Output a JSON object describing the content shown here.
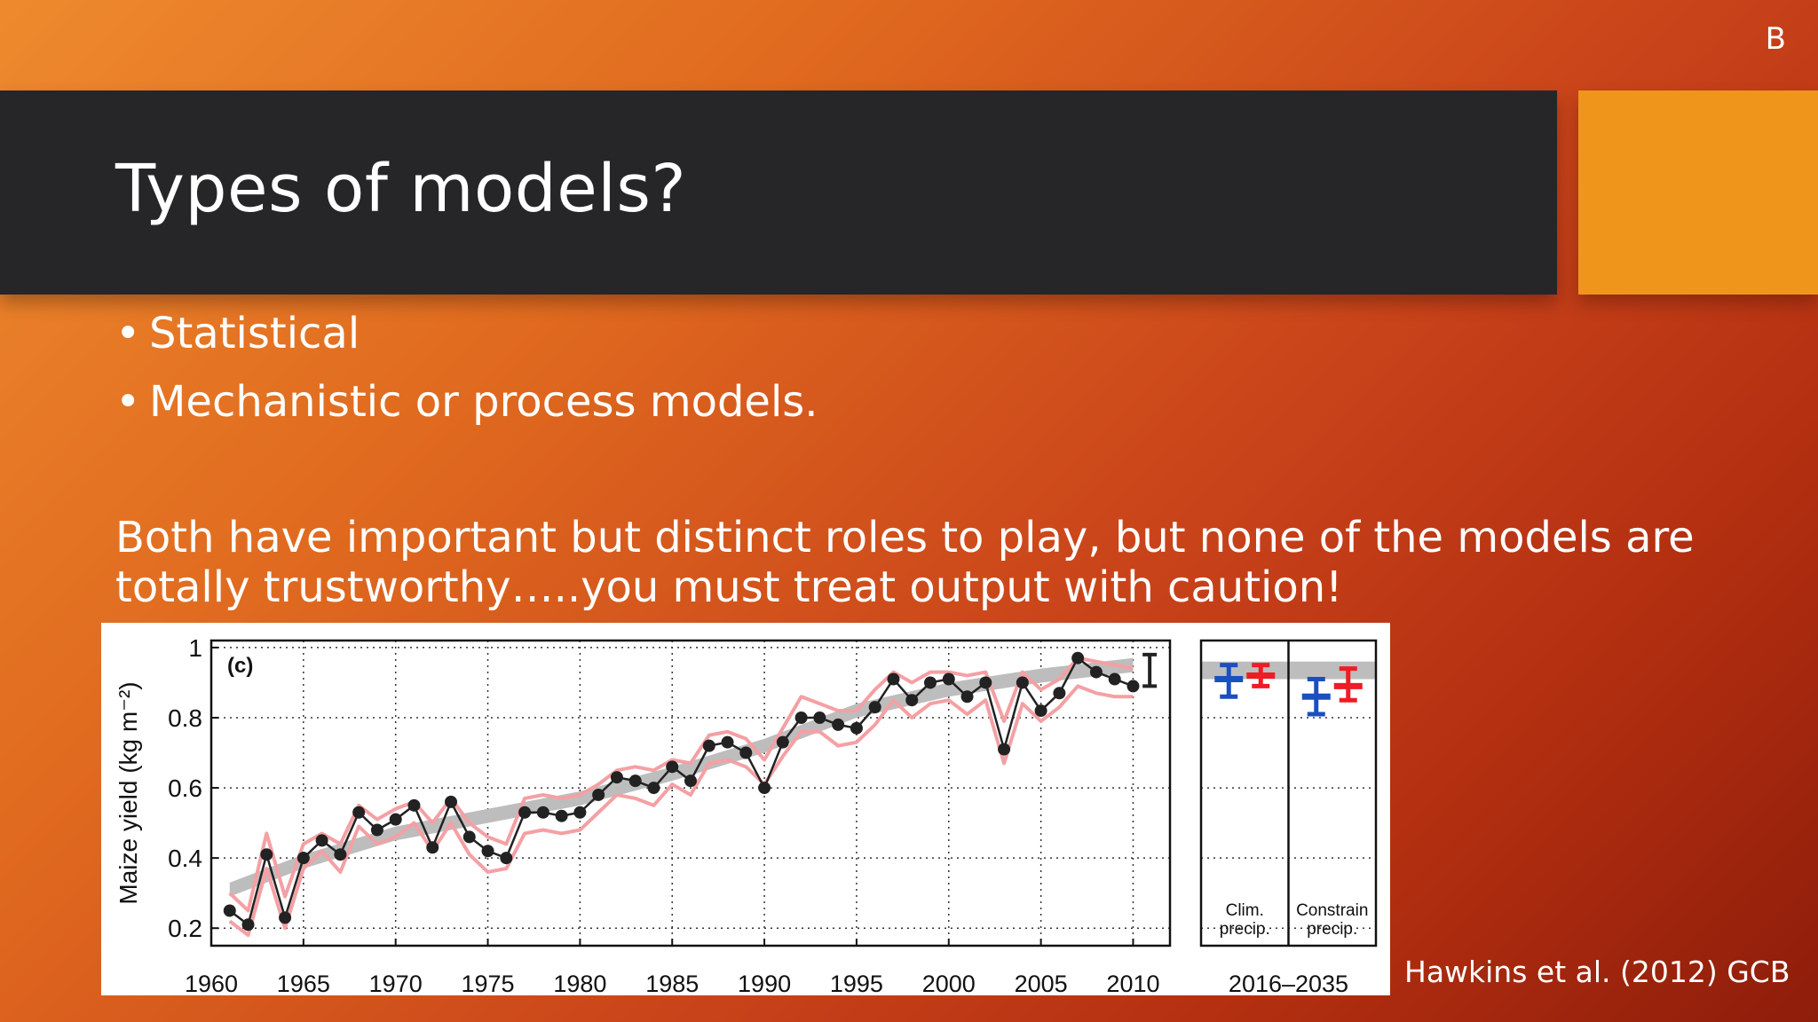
{
  "slide": {
    "corner_letter": "B",
    "title": "Types of models?",
    "bullets": [
      "Statistical",
      "Mechanistic or process models."
    ],
    "bullet_glyph": "•",
    "paragraph_lines": [
      "Both have important but distinct roles to play, but none of the models are",
      "totally trustworthy…..you must treat output with caution!"
    ],
    "citation": "Hawkins et al. (2012) GCB",
    "colors": {
      "title_band": "#262528",
      "accent_block": "#f0951c",
      "text": "#ffffff"
    }
  },
  "chart_data": {
    "type": "line",
    "panel_label": "(c)",
    "ylabel": "Maize yield (kg m⁻²)",
    "ylim": [
      0.15,
      1.02
    ],
    "yticks": [
      "0.2",
      "0.4",
      "0.6",
      "0.8",
      "1"
    ],
    "ytick_values": [
      0.2,
      0.4,
      0.6,
      0.8,
      1.0
    ],
    "xlim": [
      1960,
      2012
    ],
    "xticks": [
      "1960",
      "1965",
      "1970",
      "1975",
      "1980",
      "1985",
      "1990",
      "1995",
      "2000",
      "2005",
      "2010"
    ],
    "xtick_values": [
      1960,
      1965,
      1970,
      1975,
      1980,
      1985,
      1990,
      1995,
      2000,
      2005,
      2010
    ],
    "grid": true,
    "series": [
      {
        "name": "",
        "color": "#222222",
        "style": "line-with-dots",
        "x": [
          1961,
          1962,
          1963,
          1964,
          1965,
          1966,
          1967,
          1968,
          1969,
          1970,
          1971,
          1972,
          1973,
          1974,
          1975,
          1976,
          1977,
          1978,
          1979,
          1980,
          1981,
          1982,
          1983,
          1984,
          1985,
          1986,
          1987,
          1988,
          1989,
          1990,
          1991,
          1992,
          1993,
          1994,
          1995,
          1996,
          1997,
          1998,
          1999,
          2000,
          2001,
          2002,
          2003,
          2004,
          2005,
          2006,
          2007,
          2008,
          2009,
          2010
        ],
        "values": [
          0.25,
          0.21,
          0.41,
          0.23,
          0.4,
          0.45,
          0.41,
          0.53,
          0.48,
          0.51,
          0.55,
          0.43,
          0.56,
          0.46,
          0.42,
          0.4,
          0.53,
          0.53,
          0.52,
          0.53,
          0.58,
          0.63,
          0.62,
          0.6,
          0.66,
          0.62,
          0.72,
          0.73,
          0.7,
          0.6,
          0.73,
          0.8,
          0.8,
          0.78,
          0.77,
          0.83,
          0.91,
          0.85,
          0.9,
          0.91,
          0.86,
          0.9,
          0.71,
          0.9,
          0.82,
          0.87,
          0.97,
          0.93,
          0.91,
          0.89
        ]
      },
      {
        "name": "",
        "color": "#f4a0a4",
        "style": "band-outline",
        "x": [
          1961,
          1962,
          1963,
          1964,
          1965,
          1966,
          1967,
          1968,
          1969,
          1970,
          1971,
          1972,
          1973,
          1974,
          1975,
          1976,
          1977,
          1978,
          1979,
          1980,
          1981,
          1982,
          1983,
          1984,
          1985,
          1986,
          1987,
          1988,
          1989,
          1990,
          1991,
          1992,
          1993,
          1994,
          1995,
          1996,
          1997,
          1998,
          1999,
          2000,
          2001,
          2002,
          2003,
          2004,
          2005,
          2006,
          2007,
          2008,
          2009,
          2010
        ],
        "upper": [
          0.3,
          0.25,
          0.47,
          0.29,
          0.44,
          0.47,
          0.44,
          0.55,
          0.51,
          0.54,
          0.56,
          0.5,
          0.57,
          0.5,
          0.46,
          0.44,
          0.57,
          0.58,
          0.57,
          0.58,
          0.61,
          0.65,
          0.66,
          0.65,
          0.68,
          0.67,
          0.75,
          0.76,
          0.74,
          0.68,
          0.77,
          0.86,
          0.84,
          0.82,
          0.82,
          0.88,
          0.93,
          0.9,
          0.93,
          0.93,
          0.92,
          0.93,
          0.79,
          0.93,
          0.88,
          0.91,
          0.97,
          0.96,
          0.95,
          0.94
        ],
        "lower": [
          0.22,
          0.18,
          0.37,
          0.2,
          0.37,
          0.42,
          0.36,
          0.49,
          0.44,
          0.46,
          0.5,
          0.42,
          0.5,
          0.41,
          0.36,
          0.37,
          0.47,
          0.48,
          0.47,
          0.48,
          0.53,
          0.58,
          0.57,
          0.55,
          0.61,
          0.58,
          0.67,
          0.68,
          0.66,
          0.61,
          0.69,
          0.76,
          0.76,
          0.72,
          0.73,
          0.78,
          0.85,
          0.8,
          0.84,
          0.85,
          0.81,
          0.85,
          0.67,
          0.84,
          0.79,
          0.83,
          0.89,
          0.87,
          0.86,
          0.86
        ]
      },
      {
        "name": "",
        "color": "#bdbdbd",
        "style": "trend-band",
        "x": [
          1961,
          1965,
          1970,
          1975,
          1980,
          1985,
          1990,
          1995,
          2000,
          2005,
          2010
        ],
        "values": [
          0.31,
          0.39,
          0.47,
          0.52,
          0.57,
          0.64,
          0.72,
          0.82,
          0.88,
          0.92,
          0.95
        ],
        "width": 0.04
      }
    ],
    "error_bar": {
      "x": 2010.9,
      "low": 0.89,
      "high": 0.98,
      "color": "#222222"
    },
    "projection_panel": {
      "period_label": "2016–2035",
      "columns": [
        {
          "label_lines": [
            "Clim.",
            "precip."
          ]
        },
        {
          "label_lines": [
            "Constrain",
            "precip."
          ]
        }
      ],
      "band": {
        "low": 0.91,
        "high": 0.96,
        "color": "#bdbdbd"
      },
      "markers": [
        {
          "column": 0,
          "color": "#1a4fbf",
          "center": 0.91,
          "low": 0.86,
          "high": 0.95
        },
        {
          "column": 0,
          "color": "#ee1c24",
          "center": 0.92,
          "low": 0.89,
          "high": 0.95
        },
        {
          "column": 1,
          "color": "#1a4fbf",
          "center": 0.86,
          "low": 0.81,
          "high": 0.91
        },
        {
          "column": 1,
          "color": "#ee1c24",
          "center": 0.89,
          "low": 0.85,
          "high": 0.94
        }
      ]
    }
  }
}
